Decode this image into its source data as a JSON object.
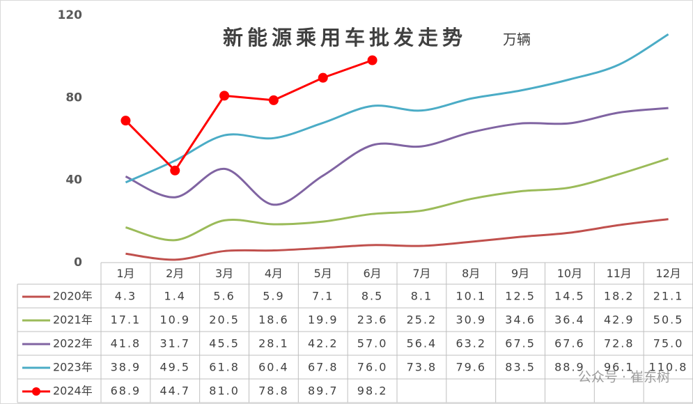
{
  "chart_data": {
    "type": "line",
    "title": "新能源乘用车批发走势",
    "subtitle": "万辆",
    "categories": [
      "1月",
      "2月",
      "3月",
      "4月",
      "5月",
      "6月",
      "7月",
      "8月",
      "9月",
      "10月",
      "11月",
      "12月"
    ],
    "ylim": [
      0,
      120
    ],
    "yticks": [
      0,
      40,
      80,
      120
    ],
    "grid": false,
    "series": [
      {
        "name": "2020年",
        "color": "#c0504d",
        "smooth": true,
        "markers": false,
        "values": [
          4.3,
          1.4,
          5.6,
          5.9,
          7.1,
          8.5,
          8.1,
          10.1,
          12.5,
          14.5,
          18.2,
          21.1
        ],
        "value_labels": [
          "4.3",
          "1.4",
          "5.6",
          "5.9",
          "7.1",
          "8.5",
          "8.1",
          "10.1",
          "12.5",
          "14.5",
          "18.2",
          "21.1"
        ]
      },
      {
        "name": "2021年",
        "color": "#9bbb59",
        "smooth": true,
        "markers": false,
        "values": [
          17.1,
          10.9,
          20.5,
          18.6,
          19.9,
          23.6,
          25.2,
          30.9,
          34.6,
          36.4,
          42.9,
          50.5
        ],
        "value_labels": [
          "17.1",
          "10.9",
          "20.5",
          "18.6",
          "19.9",
          "23.6",
          "25.2",
          "30.9",
          "34.6",
          "36.4",
          "42.9",
          "50.5"
        ]
      },
      {
        "name": "2022年",
        "color": "#8064a2",
        "smooth": true,
        "markers": false,
        "values": [
          41.8,
          31.7,
          45.5,
          28.1,
          42.2,
          57.0,
          56.4,
          63.2,
          67.5,
          67.6,
          72.8,
          75.0
        ],
        "value_labels": [
          "41.8",
          "31.7",
          "45.5",
          "28.1",
          "42.2",
          "57.0",
          "56.4",
          "63.2",
          "67.5",
          "67.6",
          "72.8",
          "75.0"
        ]
      },
      {
        "name": "2023年",
        "color": "#4bacc6",
        "smooth": true,
        "markers": false,
        "values": [
          38.9,
          49.5,
          61.8,
          60.4,
          67.8,
          76.0,
          73.8,
          79.6,
          83.5,
          88.9,
          96.1,
          110.8
        ],
        "value_labels": [
          "38.9",
          "49.5",
          "61.8",
          "60.4",
          "67.8",
          "76.0",
          "73.8",
          "79.6",
          "83.5",
          "88.9",
          "96.1",
          "110.8"
        ]
      },
      {
        "name": "2024年",
        "color": "#ff0000",
        "smooth": false,
        "markers": true,
        "values": [
          68.9,
          44.7,
          81.0,
          78.8,
          89.7,
          98.2,
          null,
          null,
          null,
          null,
          null,
          null
        ],
        "value_labels": [
          "68.9",
          "44.7",
          "81.0",
          "78.8",
          "89.7",
          "98.2",
          null,
          null,
          null,
          null,
          null,
          null
        ]
      }
    ],
    "watermark": "公众号 · 崔东树"
  }
}
